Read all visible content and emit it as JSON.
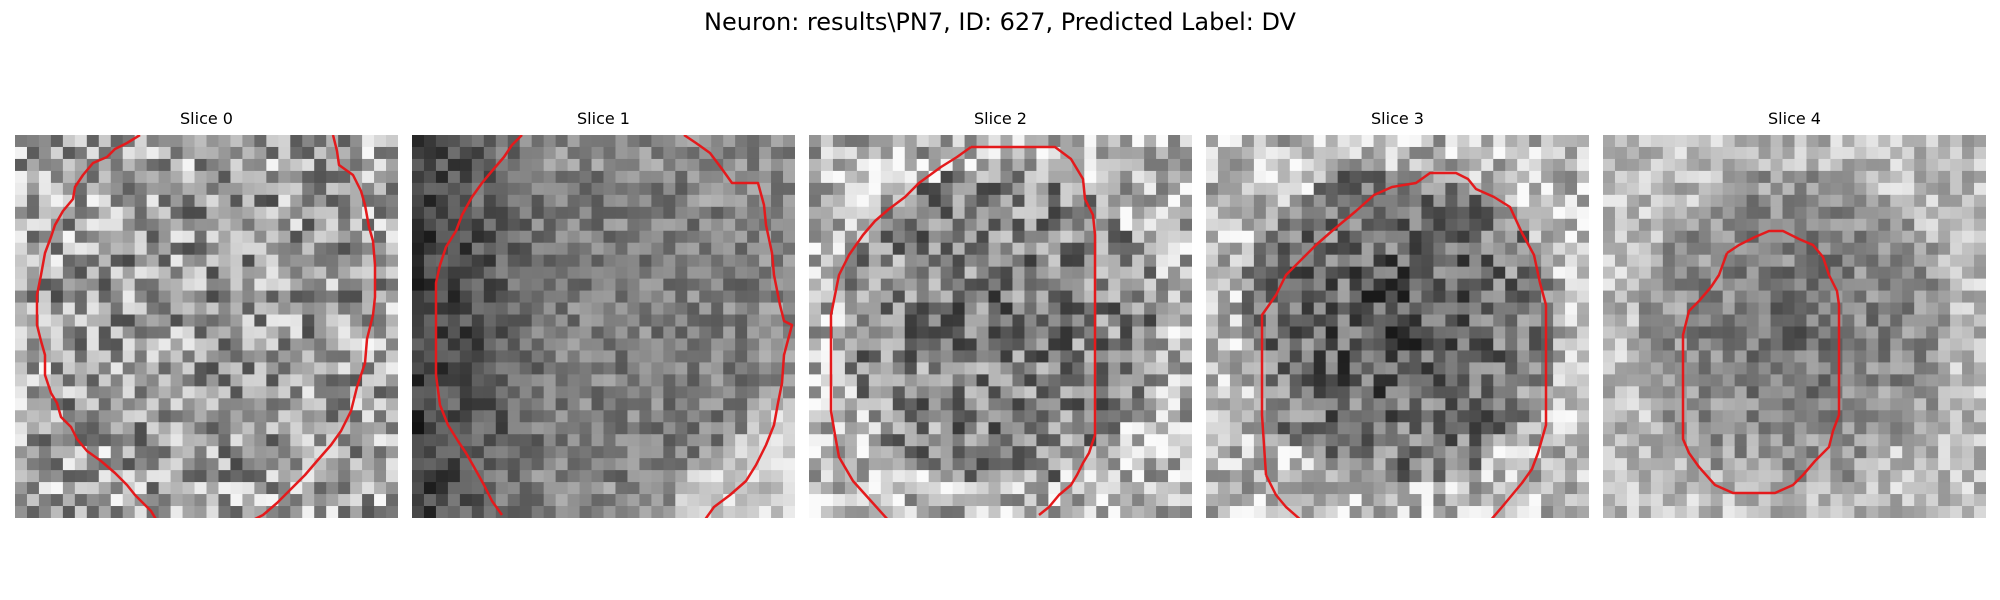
{
  "figure": {
    "title": "Neuron: results\\PN7, ID: 627, Predicted Label: DV"
  },
  "slices": [
    {
      "title": "Slice 0",
      "seed": 11,
      "dark_center": 0.0,
      "base": 0.6,
      "contrast": 0.32,
      "edge_bright": 0.05
    },
    {
      "title": "Slice 1",
      "seed": 23,
      "dark_center": 0.0,
      "base": 0.5,
      "contrast": 0.16,
      "edge_bright": 0.05,
      "left_dark": true
    },
    {
      "title": "Slice 2",
      "seed": 37,
      "dark_center": 0.1,
      "base": 0.55,
      "contrast": 0.3,
      "edge_bright": 0.18
    },
    {
      "title": "Slice 3",
      "seed": 41,
      "dark_center": 0.25,
      "base": 0.52,
      "contrast": 0.26,
      "edge_bright": 0.22
    },
    {
      "title": "Slice 4",
      "seed": 59,
      "dark_center": 0.22,
      "base": 0.62,
      "contrast": 0.18,
      "edge_bright": 0.12
    }
  ],
  "colors": {
    "contour": "#e41a1c"
  }
}
